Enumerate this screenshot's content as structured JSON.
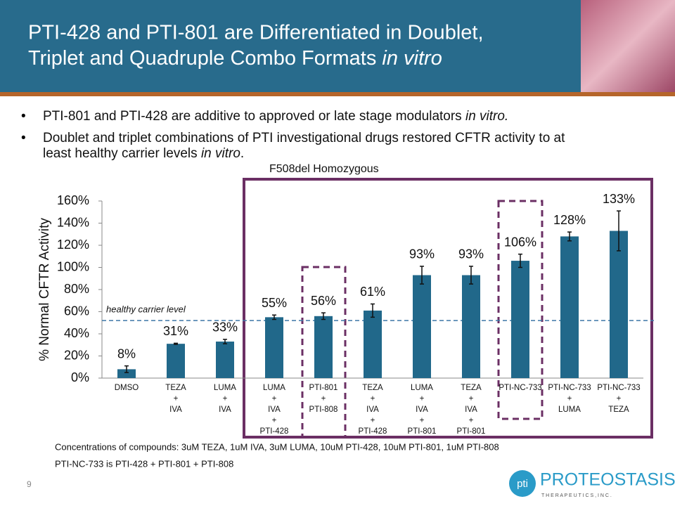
{
  "header": {
    "title_lines": [
      "PTI-428 and PTI-801 are Differentiated in Doublet,",
      [
        "Triplet and Quadruple Combo Formats ",
        "in vitro"
      ]
    ]
  },
  "bullets": [
    [
      "PTI-801 and PTI-428 are additive to approved or late stage modulators ",
      "in vitro."
    ],
    [
      "Doublet and triplet combinations of PTI investigational drugs restored CFTR activity to at",
      "least healthy carrier levels ",
      "in vitro",
      "."
    ]
  ],
  "chart_data": {
    "type": "bar",
    "box_label": "F508del Homozygous",
    "y_label": "% Normal CFTR Activity",
    "categories": [
      [
        "DMSO"
      ],
      [
        "TEZA",
        "+",
        "IVA"
      ],
      [
        "LUMA",
        "+",
        "IVA"
      ],
      [
        "LUMA",
        "+",
        "IVA",
        "+",
        "PTI-428"
      ],
      [
        "PTI-801",
        "+",
        "PTI-808"
      ],
      [
        "TEZA",
        "+",
        "IVA",
        "+",
        "PTI-428"
      ],
      [
        "LUMA",
        "+",
        "IVA",
        "+",
        "PTI-801"
      ],
      [
        "TEZA",
        "+",
        "IVA",
        "+",
        "PTI-801"
      ],
      [
        "PTI-NC-733"
      ],
      [
        "PTI-NC-733",
        "+",
        "LUMA"
      ],
      [
        "PTI-NC-733",
        "+",
        "TEZA"
      ]
    ],
    "values": [
      8,
      31,
      33,
      55,
      56,
      61,
      93,
      93,
      106,
      128,
      133
    ],
    "value_labels": [
      "8%",
      "31%",
      "33%",
      "55%",
      "56%",
      "61%",
      "93%",
      "93%",
      "106%",
      "128%",
      "133%"
    ],
    "errors": [
      3,
      0.5,
      2,
      2,
      3,
      6,
      8,
      8,
      6,
      4,
      18
    ],
    "color": "#21688a",
    "ylim": [
      0,
      160
    ],
    "yticks": [
      {
        "value": 0,
        "label": "0%"
      },
      {
        "value": 20,
        "label": "20%"
      },
      {
        "value": 40,
        "label": "40%"
      },
      {
        "value": 60,
        "label": "60%"
      },
      {
        "value": 80,
        "label": "80%"
      },
      {
        "value": 100,
        "label": "100%"
      },
      {
        "value": 120,
        "label": "120%"
      },
      {
        "value": 140,
        "label": "140%"
      },
      {
        "value": 160,
        "label": "160%"
      }
    ],
    "reference_line": {
      "label": "healthy carrier level",
      "value": 52
    }
  },
  "footnotes": [
    "Concentrations of compounds: 3uM TEZA, 1uM IVA, 3uM LUMA, 10uM PTI-428, 10uM PTI-801, 1uM PTI-808",
    "PTI-NC-733 is PTI-428 + PTI-801 + PTI-808"
  ],
  "page_number": "9",
  "logo": {
    "mark": "pti",
    "name": "PROTEOSTASIS",
    "sub": "T H E R A P E U T I C S ,  I N C ."
  }
}
